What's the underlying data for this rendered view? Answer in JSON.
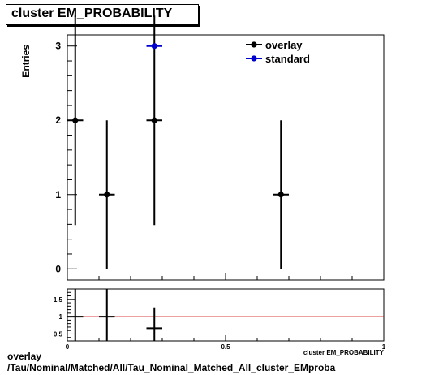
{
  "title": "cluster EM_PROBABILITY",
  "footer": {
    "line1": "overlay",
    "line2": "/Tau/Nominal/Matched/All/Tau_Nominal_Matched_All_cluster_EMproba"
  },
  "colors": {
    "overlay": "#000000",
    "standard": "#0000cc",
    "ratio_line": "#cc0000"
  },
  "chart_data": [
    {
      "type": "scatter",
      "title": "cluster EM_PROBABILITY",
      "xlabel": "cluster EM_PROBABILITY",
      "ylabel": "Entries",
      "xlim": [
        0,
        1
      ],
      "ylim": [
        -0.15,
        3.15
      ],
      "yticks": [
        0,
        1,
        2,
        3
      ],
      "ytick_labels": [
        "0",
        "1",
        "2",
        "3"
      ],
      "legend": {
        "placement": "top-right",
        "entries": [
          "overlay",
          "standard"
        ]
      },
      "series": [
        {
          "name": "overlay",
          "points": [
            {
              "x": 0.025,
              "y": 2,
              "xerr": 0.025,
              "yerr": [
                1.41,
                1.41
              ]
            },
            {
              "x": 0.125,
              "y": 1,
              "xerr": 0.025,
              "yerr": [
                1.0,
                1.0
              ]
            },
            {
              "x": 0.275,
              "y": 2,
              "xerr": 0.025,
              "yerr": [
                1.41,
                1.41
              ]
            },
            {
              "x": 0.675,
              "y": 1,
              "xerr": 0.025,
              "yerr": [
                1.0,
                1.0
              ]
            }
          ]
        },
        {
          "name": "standard",
          "points": [
            {
              "x": 0.275,
              "y": 3,
              "xerr": 0.025,
              "yerr": [
                0,
                0
              ]
            }
          ]
        }
      ]
    },
    {
      "type": "scatter",
      "xlabel": "cluster EM_PROBABILITY",
      "xlim": [
        0,
        1
      ],
      "ylim": [
        0.3,
        1.8
      ],
      "xticks": [
        0,
        0.5,
        1
      ],
      "xtick_labels": [
        "0",
        "0.5",
        "1"
      ],
      "yticks": [
        0.5,
        1,
        1.5
      ],
      "ytick_labels": [
        "0.5",
        "1",
        "1.5"
      ],
      "reference_line": 1,
      "points": [
        {
          "x": 0.025,
          "y": 1,
          "xerr": 0.025,
          "yerr": [
            0.8,
            0.8
          ]
        },
        {
          "x": 0.125,
          "y": 1,
          "xerr": 0.025,
          "yerr": [
            0.8,
            0.8
          ]
        },
        {
          "x": 0.275,
          "y": 0.667,
          "xerr": 0.025,
          "yerr": [
            0.6,
            0.6
          ]
        }
      ]
    }
  ]
}
